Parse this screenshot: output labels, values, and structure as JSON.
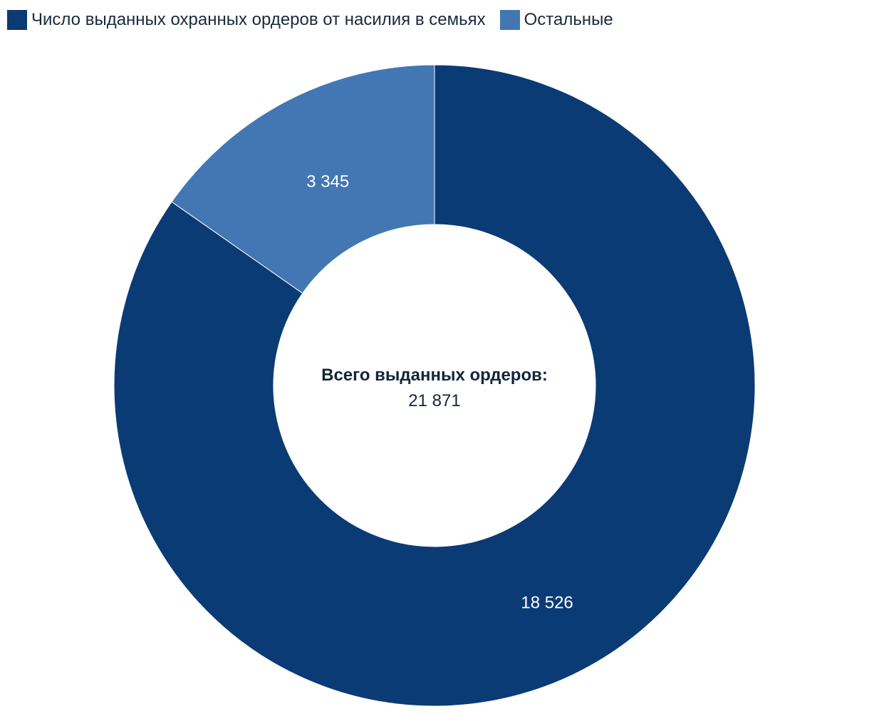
{
  "chart_data": {
    "type": "pie",
    "donut": true,
    "categories": [
      "Число выданных охранных ордеров от насилия в семьях",
      "Остальные"
    ],
    "values": [
      18526,
      3345
    ],
    "value_labels": [
      "18 526",
      "3 345"
    ],
    "colors": [
      "#0b3b75",
      "#4277b4"
    ],
    "legend": "top-left",
    "center": {
      "title": "Всего выданных ордеров:",
      "value": "21 871"
    }
  }
}
